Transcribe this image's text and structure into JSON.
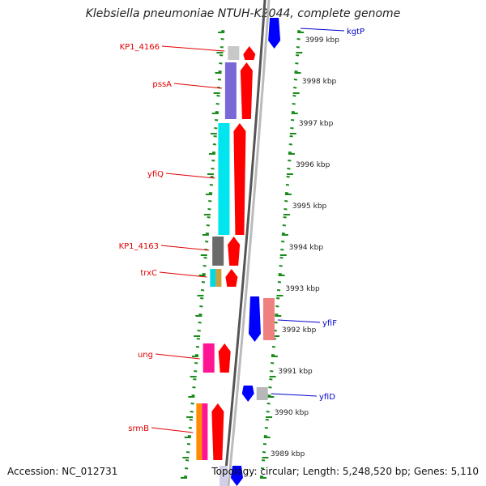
{
  "title": "Klebsiella pneumoniae NTUH-K2044, complete genome",
  "footer": {
    "accession": "Accession: NC_012731",
    "topology": "Topology: circular; Length: 5,248,520 bp; Genes: 5,110"
  },
  "scale_labels": [
    "3999 kbp",
    "3998 kbp",
    "3997 kbp",
    "3996 kbp",
    "3995 kbp",
    "3994 kbp",
    "3993 kbp",
    "3992 kbp",
    "3991 kbp",
    "3990 kbp",
    "3989 kbp"
  ],
  "genes_left": [
    {
      "label": "KP1_4166",
      "color": "#c8c8c8"
    },
    {
      "label": "pssA",
      "color": "#7a68d6"
    },
    {
      "label": "yfiQ",
      "color": "#00e5ee"
    },
    {
      "label": "KP1_4163",
      "color": "#6a6a6a"
    },
    {
      "label": "trxC",
      "color": "#00d8e0",
      "color2": "#c8a040"
    },
    {
      "label": "ung",
      "color": "#ff1493"
    },
    {
      "label": "srmB",
      "color": "#ff8c00",
      "color2": "#ff1493"
    }
  ],
  "genes_right": [
    {
      "label": "kgtP",
      "color": "#0000ff"
    },
    {
      "label": "yfiF",
      "color": "#f08080"
    },
    {
      "label": "yfiD",
      "color": "#b8b8b8"
    }
  ],
  "colors": {
    "cds": "#ff0000",
    "label_left": "#e00000",
    "label_right": "#0000cc",
    "tick": "#1a8a1a",
    "backbone": "#888888"
  }
}
